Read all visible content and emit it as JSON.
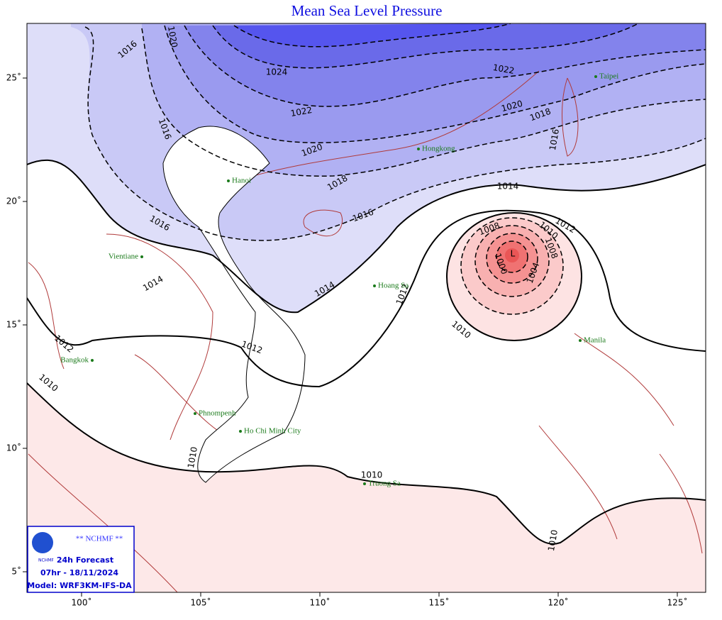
{
  "title": "Mean Sea Level Pressure",
  "axes": {
    "x_ticks": [
      {
        "value": 100,
        "label": "100˚"
      },
      {
        "value": 105,
        "label": "105˚"
      },
      {
        "value": 110,
        "label": "110˚"
      },
      {
        "value": 115,
        "label": "115˚"
      },
      {
        "value": 120,
        "label": "120˚"
      },
      {
        "value": 125,
        "label": "125˚"
      }
    ],
    "y_ticks": [
      {
        "value": 25,
        "label": "25˚"
      },
      {
        "value": 20,
        "label": "20˚"
      },
      {
        "value": 15,
        "label": "15˚"
      },
      {
        "value": 10,
        "label": "10˚"
      },
      {
        "value": 5,
        "label": "5˚"
      }
    ]
  },
  "contour_labels": [
    "1016",
    "1020",
    "1024",
    "1022",
    "1022",
    "1020",
    "1018",
    "1016",
    "1016",
    "1020",
    "1018",
    "1016",
    "1016",
    "1014",
    "1014",
    "1014",
    "1012",
    "1012",
    "1012",
    "1010",
    "1010",
    "1010",
    "1010",
    "1010",
    "1008",
    "1010",
    "1012",
    "1008",
    "1004",
    "1000",
    "L"
  ],
  "cities": [
    "Taipei",
    "Hongkong",
    "Hanoi",
    "Vientiane",
    "Hoang Sa",
    "Manila",
    "Bangkok",
    "Phnompenh",
    "Ho Chi Minh City",
    "Truong Sa"
  ],
  "legend": {
    "logo": "NCHMF",
    "org": "** NCHMF **",
    "forecast": "24h Forecast",
    "date": "07hr - 18/11/2024",
    "model": "Model: WRF3KM-IFS-DA"
  }
}
